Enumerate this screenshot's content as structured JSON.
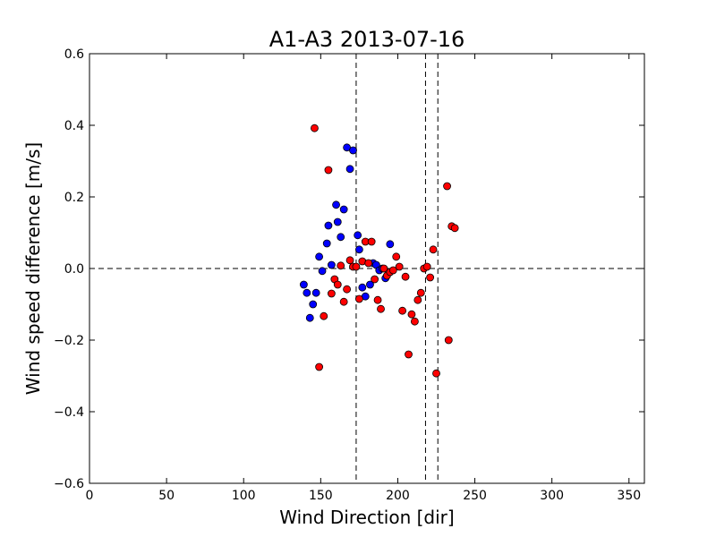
{
  "chart_data": {
    "type": "scatter",
    "title": "A1-A3 2013-07-16",
    "xlabel": "Wind Direction [dir]",
    "ylabel": "Wind speed difference [m/s]",
    "xlim": [
      0,
      360
    ],
    "ylim": [
      -0.6,
      0.6
    ],
    "xticks": [
      "0",
      "50",
      "100",
      "150",
      "200",
      "250",
      "300",
      "350"
    ],
    "yticks": [
      "0.6",
      "0.4",
      "0.2",
      "0.0",
      "−0.2",
      "−0.4",
      "−0.6"
    ],
    "grid": false,
    "legend": "none",
    "reference_lines": {
      "horizontal_y": [
        0.0
      ],
      "vertical_x": [
        173,
        218,
        226
      ]
    },
    "series": [
      {
        "color": "#0000ff",
        "points": [
          [
            139,
            -0.045
          ],
          [
            141,
            -0.068
          ],
          [
            143,
            -0.138
          ],
          [
            145,
            -0.1
          ],
          [
            147,
            -0.068
          ],
          [
            149,
            0.033
          ],
          [
            151,
            -0.007
          ],
          [
            154,
            0.07
          ],
          [
            155,
            0.12
          ],
          [
            157,
            0.01
          ],
          [
            160,
            0.178
          ],
          [
            161,
            0.13
          ],
          [
            163,
            0.088
          ],
          [
            165,
            0.165
          ],
          [
            167,
            0.338
          ],
          [
            169,
            0.278
          ],
          [
            171,
            0.33
          ],
          [
            174,
            0.093
          ],
          [
            175,
            0.053
          ],
          [
            177,
            -0.053
          ],
          [
            179,
            -0.078
          ],
          [
            182,
            -0.045
          ],
          [
            184,
            0.015
          ],
          [
            186,
            0.01
          ],
          [
            188,
            -0.005
          ],
          [
            190,
            0.0
          ],
          [
            192,
            -0.027
          ],
          [
            195,
            0.068
          ]
        ]
      },
      {
        "color": "#ff0000",
        "points": [
          [
            146,
            0.392
          ],
          [
            149,
            -0.275
          ],
          [
            152,
            -0.133
          ],
          [
            155,
            0.275
          ],
          [
            157,
            -0.07
          ],
          [
            159,
            -0.03
          ],
          [
            161,
            -0.045
          ],
          [
            163,
            0.008
          ],
          [
            165,
            -0.093
          ],
          [
            167,
            -0.058
          ],
          [
            169,
            0.023
          ],
          [
            171,
            0.005
          ],
          [
            173,
            0.005
          ],
          [
            175,
            -0.085
          ],
          [
            177,
            0.02
          ],
          [
            179,
            0.075
          ],
          [
            181,
            0.015
          ],
          [
            183,
            0.075
          ],
          [
            185,
            -0.03
          ],
          [
            187,
            -0.088
          ],
          [
            189,
            -0.113
          ],
          [
            191,
            0.0
          ],
          [
            193,
            -0.02
          ],
          [
            195,
            -0.01
          ],
          [
            197,
            -0.005
          ],
          [
            199,
            0.033
          ],
          [
            201,
            0.005
          ],
          [
            203,
            -0.118
          ],
          [
            205,
            -0.023
          ],
          [
            207,
            -0.24
          ],
          [
            209,
            -0.128
          ],
          [
            211,
            -0.148
          ],
          [
            213,
            -0.088
          ],
          [
            215,
            -0.068
          ],
          [
            217,
            0.0
          ],
          [
            219,
            0.005
          ],
          [
            221,
            -0.025
          ],
          [
            223,
            0.053
          ],
          [
            225,
            -0.293
          ],
          [
            232,
            0.23
          ],
          [
            233,
            -0.2
          ],
          [
            235,
            0.118
          ],
          [
            237,
            0.113
          ]
        ]
      }
    ]
  }
}
